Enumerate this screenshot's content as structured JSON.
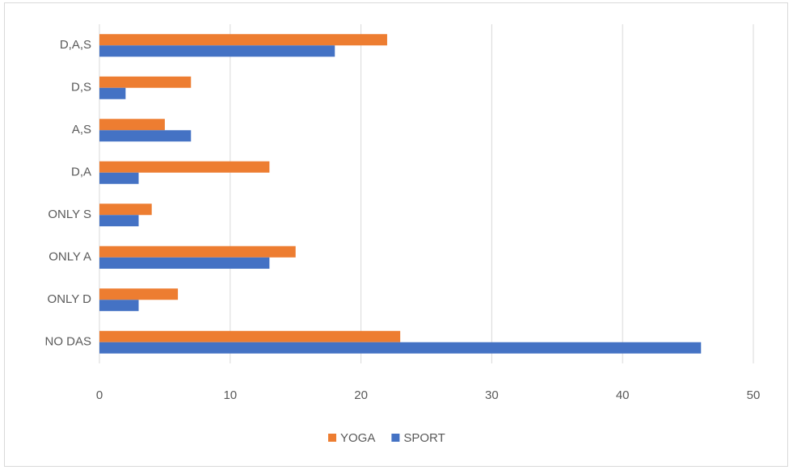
{
  "chart_data": {
    "type": "bar",
    "orientation": "horizontal",
    "categories": [
      "NO DAS",
      "ONLY D",
      "ONLY A",
      "ONLY S",
      "D,A",
      "A,S",
      "D,S",
      "D,A,S"
    ],
    "series": [
      {
        "name": "YOGA",
        "color": "#ed7d31",
        "values": [
          23,
          6,
          15,
          4,
          13,
          5,
          7,
          22
        ]
      },
      {
        "name": "SPORT",
        "color": "#4472c4",
        "values": [
          46,
          3,
          13,
          3,
          3,
          7,
          2,
          18
        ]
      }
    ],
    "xlim": [
      0,
      50
    ],
    "xticks": [
      0,
      10,
      20,
      30,
      40,
      50
    ],
    "grid": true,
    "legend": "bottom"
  }
}
